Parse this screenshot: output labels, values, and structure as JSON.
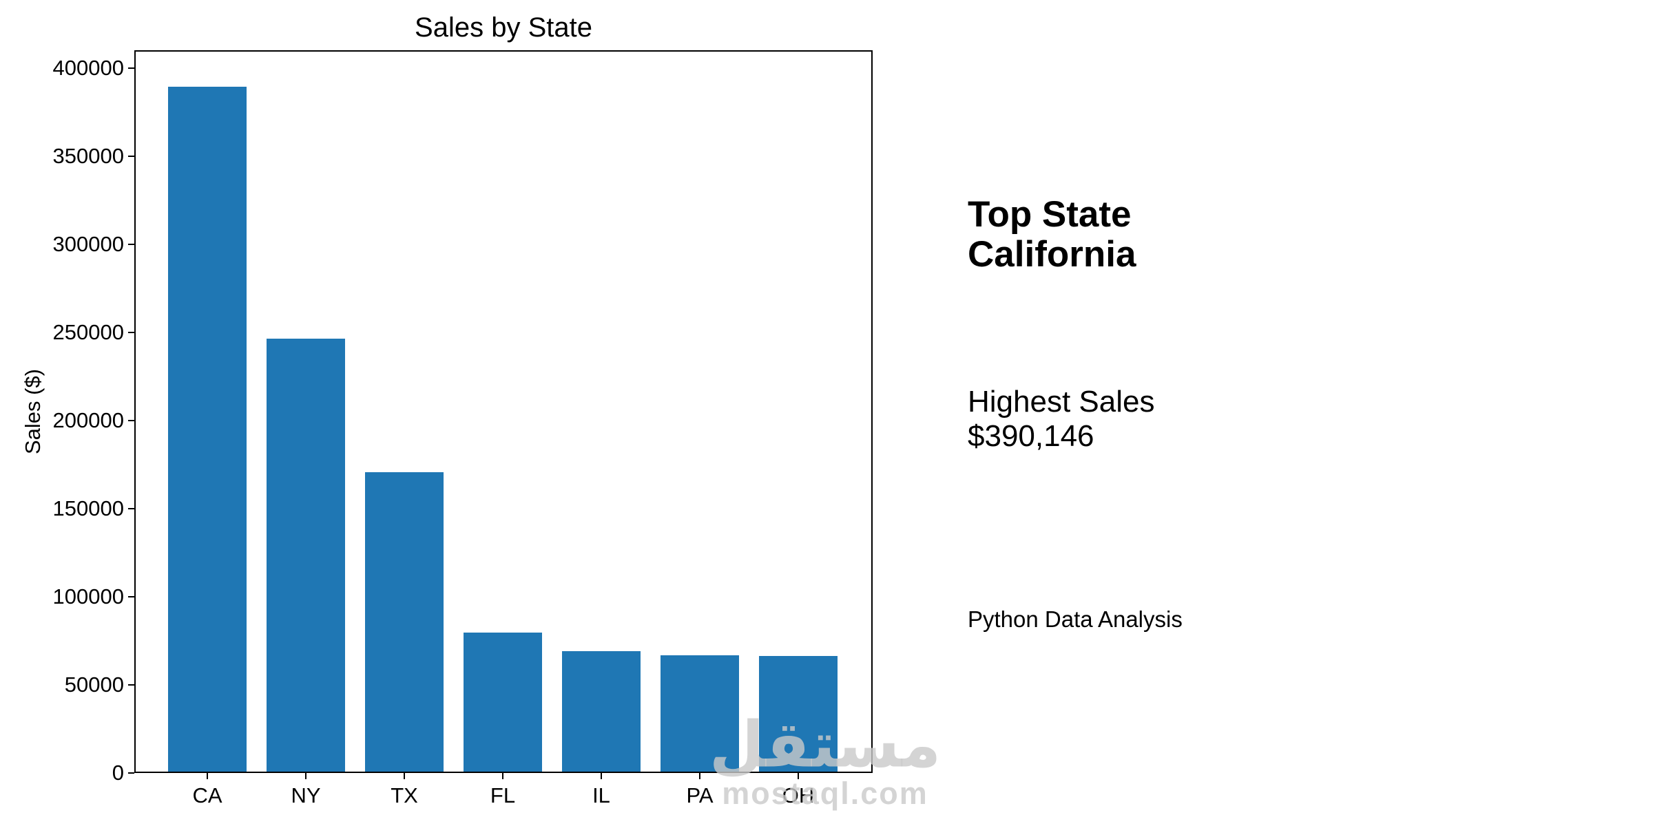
{
  "page": {
    "background": "#ffffff",
    "text_color": "#000000"
  },
  "chart_data": {
    "type": "bar",
    "title": "Sales by State",
    "xlabel": "",
    "ylabel": "Sales ($)",
    "categories": [
      "CA",
      "NY",
      "TX",
      "FL",
      "IL",
      "PA",
      "OH"
    ],
    "values": [
      390146,
      246700,
      170500,
      79100,
      68400,
      66400,
      65800
    ],
    "yticks": [
      0,
      50000,
      100000,
      150000,
      200000,
      250000,
      300000,
      350000,
      400000
    ],
    "ylim": [
      0,
      410000
    ],
    "bar_color": "#1f77b4",
    "grid": false,
    "legend": null
  },
  "annotations": {
    "heading_line1": "Top State",
    "heading_line2": "California",
    "subheading_line1": "Highest Sales",
    "subheading_line2": "$390,146",
    "caption": "Python Data Analysis"
  },
  "watermark": {
    "logo_text": "مستقل",
    "domain_text": "mostaql.com",
    "color": "rgba(201,201,201,0.8)"
  }
}
